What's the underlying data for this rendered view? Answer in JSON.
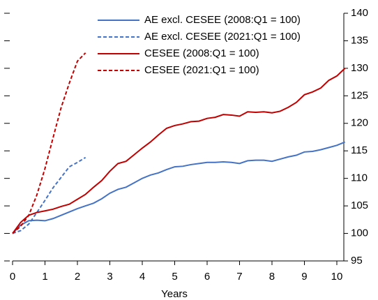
{
  "chart_data": {
    "type": "line",
    "x_label": "Years",
    "x": [
      0,
      0.25,
      0.5,
      0.75,
      1,
      1.25,
      1.5,
      1.75,
      2,
      2.25,
      2.5,
      2.75,
      3,
      3.25,
      3.5,
      3.75,
      4,
      4.25,
      4.5,
      4.75,
      5,
      5.25,
      5.5,
      5.75,
      6,
      6.25,
      6.5,
      6.75,
      7,
      7.25,
      7.5,
      7.75,
      8,
      8.25,
      8.5,
      8.75,
      9,
      9.25,
      9.5,
      9.75,
      10,
      10.25
    ],
    "series": [
      {
        "name": "AE excl. CESEE (2008:Q1 = 100)",
        "color": "#4472c4",
        "dash": false,
        "values": [
          100,
          101.5,
          102.3,
          102.4,
          102.3,
          102.7,
          103.3,
          103.9,
          104.5,
          105,
          105.5,
          106.3,
          107.3,
          108,
          108.4,
          109.2,
          110,
          110.6,
          111,
          111.6,
          112.1,
          112.2,
          112.5,
          112.7,
          112.9,
          112.9,
          113,
          112.9,
          112.7,
          113.2,
          113.3,
          113.3,
          113.1,
          113.5,
          113.9,
          114.2,
          114.8,
          114.9,
          115.2,
          115.6,
          116,
          116.6
        ]
      },
      {
        "name": "AE excl. CESEE (2021:Q1 = 100)",
        "color": "#4472c4",
        "dash": true,
        "values": [
          100,
          100.5,
          101.7,
          103.8,
          106,
          108.3,
          110.2,
          112.1,
          112.9,
          113.8,
          null,
          null,
          null,
          null,
          null,
          null,
          null,
          null,
          null,
          null,
          null,
          null,
          null,
          null,
          null,
          null,
          null,
          null,
          null,
          null,
          null,
          null,
          null,
          null,
          null,
          null,
          null,
          null,
          null,
          null,
          null,
          null
        ]
      },
      {
        "name": "CESEE (2008:Q1 = 100)",
        "color": "#c00000",
        "dash": false,
        "values": [
          100,
          102,
          103.3,
          103.8,
          104.1,
          104.4,
          104.9,
          105.3,
          106.2,
          107.1,
          108.4,
          109.6,
          111.3,
          112.7,
          113.1,
          114.3,
          115.5,
          116.6,
          117.9,
          119.1,
          119.6,
          119.9,
          120.3,
          120.4,
          120.9,
          121.1,
          121.6,
          121.5,
          121.3,
          122.1,
          122,
          122.1,
          121.9,
          122.2,
          122.9,
          123.8,
          125.2,
          125.7,
          126.4,
          127.8,
          128.6,
          130
        ]
      },
      {
        "name": "CESEE (2021:Q1 = 100)",
        "color": "#c00000",
        "dash": true,
        "values": [
          100,
          101.3,
          103.3,
          107,
          111.8,
          117.4,
          122.9,
          127.3,
          131.3,
          132.8,
          null,
          null,
          null,
          null,
          null,
          null,
          null,
          null,
          null,
          null,
          null,
          null,
          null,
          null,
          null,
          null,
          null,
          null,
          null,
          null,
          null,
          null,
          null,
          null,
          null,
          null,
          null,
          null,
          null,
          null,
          null,
          null
        ]
      }
    ],
    "xlim": [
      0,
      10.25
    ],
    "xticks": [
      0,
      1,
      2,
      3,
      4,
      5,
      6,
      7,
      8,
      9,
      10
    ],
    "ylim": [
      95,
      140
    ],
    "yticks": [
      95,
      100,
      105,
      110,
      115,
      120,
      125,
      130,
      135,
      140
    ]
  }
}
